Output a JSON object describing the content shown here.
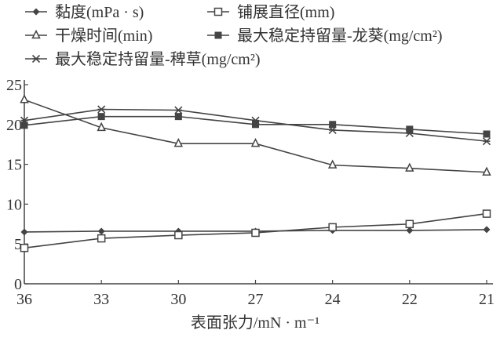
{
  "chart_data": {
    "type": "line",
    "xlabel": "表面张力/mN · m⁻¹",
    "ylabel": "",
    "categories": [
      "36",
      "33",
      "30",
      "27",
      "24",
      "22",
      "21"
    ],
    "ylim": [
      0,
      25
    ],
    "yticks": [
      "0",
      "5",
      "10",
      "15",
      "20",
      "25"
    ],
    "grid": false,
    "legend_position": "top",
    "series": [
      {
        "name": "黏度(mPa · s)",
        "marker": "diamond",
        "values": [
          6.5,
          6.6,
          6.6,
          6.6,
          6.7,
          6.7,
          6.8
        ]
      },
      {
        "name": "铺展直径(mm)",
        "marker": "square",
        "values": [
          4.5,
          5.7,
          6.1,
          6.4,
          7.1,
          7.5,
          8.8
        ]
      },
      {
        "name": "干燥时间(min)",
        "marker": "triangle",
        "values": [
          23.1,
          19.6,
          17.6,
          17.6,
          14.9,
          14.5,
          14.0
        ]
      },
      {
        "name": "最大稳定持留量-龙葵(mg/cm²)",
        "marker": "asterisk",
        "values": [
          19.9,
          21.0,
          21.0,
          20.0,
          20.0,
          19.4,
          18.8
        ]
      },
      {
        "name": "最大稳定持留量-稗草(mg/cm²)",
        "marker": "cross",
        "values": [
          20.5,
          21.9,
          21.8,
          20.5,
          19.3,
          18.9,
          17.9
        ]
      }
    ],
    "line_color": "#444444"
  }
}
